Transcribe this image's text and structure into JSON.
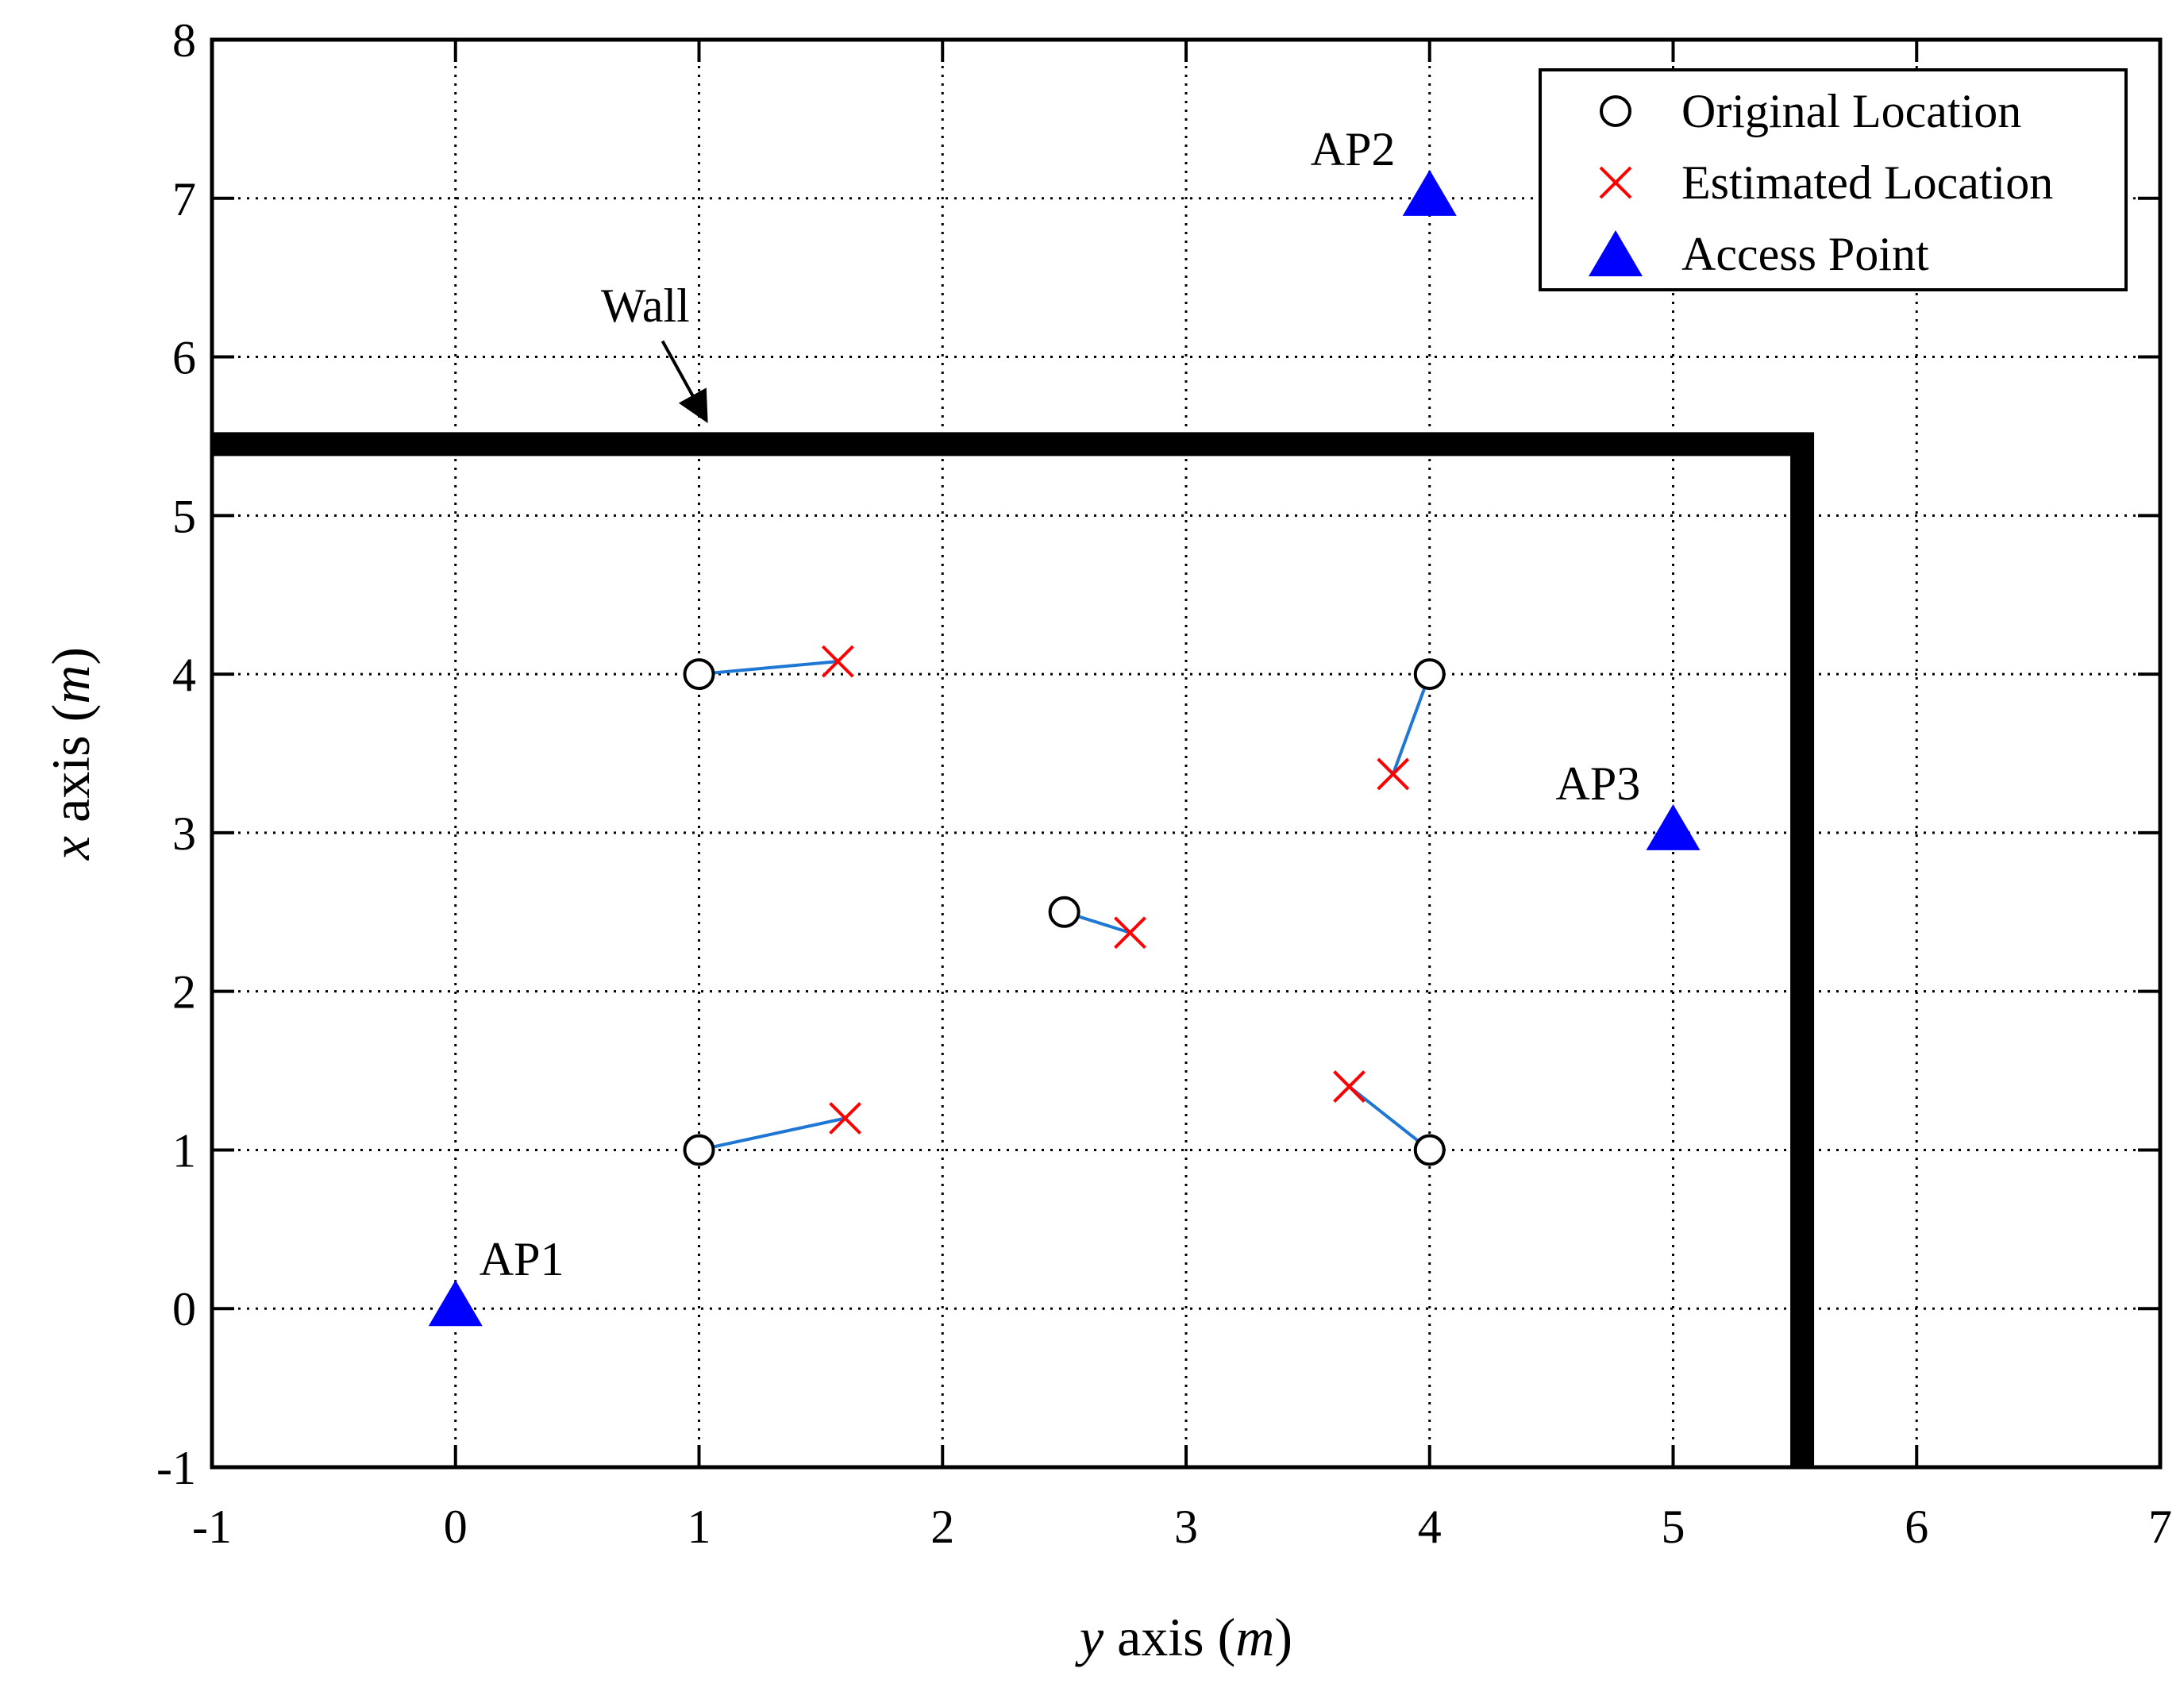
{
  "chart_data": {
    "type": "scatter",
    "xlabel": {
      "italic": "y",
      "text": " axis (",
      "unit": "m",
      "close": ")"
    },
    "ylabel": {
      "italic": "x",
      "text": " axis (",
      "unit": "m",
      "close": ")"
    },
    "xlim": [
      -1,
      7
    ],
    "ylim": [
      -1,
      8
    ],
    "xticks": [
      -1,
      0,
      1,
      2,
      3,
      4,
      5,
      6,
      7
    ],
    "yticks": [
      -1,
      0,
      1,
      2,
      3,
      4,
      5,
      6,
      7,
      8
    ],
    "grid": true,
    "legend_position": "top-right",
    "legend": [
      {
        "label": "Original Location",
        "marker": "circle",
        "color": "#000000"
      },
      {
        "label": "Estimated Location",
        "marker": "x",
        "color": "#ff0000"
      },
      {
        "label": "Access Point",
        "marker": "triangle",
        "color": "#0000ff"
      }
    ],
    "series": [
      {
        "name": "Original Location",
        "points": [
          [
            1,
            4
          ],
          [
            4,
            4
          ],
          [
            2.5,
            2.5
          ],
          [
            1,
            1
          ],
          [
            4,
            1
          ]
        ]
      },
      {
        "name": "Estimated Location",
        "points": [
          [
            1.57,
            4.08
          ],
          [
            3.85,
            3.37
          ],
          [
            2.77,
            2.37
          ],
          [
            1.6,
            1.2
          ],
          [
            3.67,
            1.4
          ]
        ]
      },
      {
        "name": "Access Point",
        "points": [
          [
            0,
            0
          ],
          [
            4,
            7
          ],
          [
            5,
            3
          ]
        ],
        "labels": [
          "AP1",
          "AP2",
          "AP3"
        ]
      }
    ],
    "error_lines_color": "#1f77d4",
    "wall": {
      "label": "Wall",
      "path": [
        [
          -1,
          5.45
        ],
        [
          5.53,
          5.45
        ],
        [
          5.53,
          -1
        ]
      ],
      "arrow_to": [
        1.03,
        5.6
      ],
      "arrow_from": [
        0.85,
        6.1
      ]
    }
  }
}
